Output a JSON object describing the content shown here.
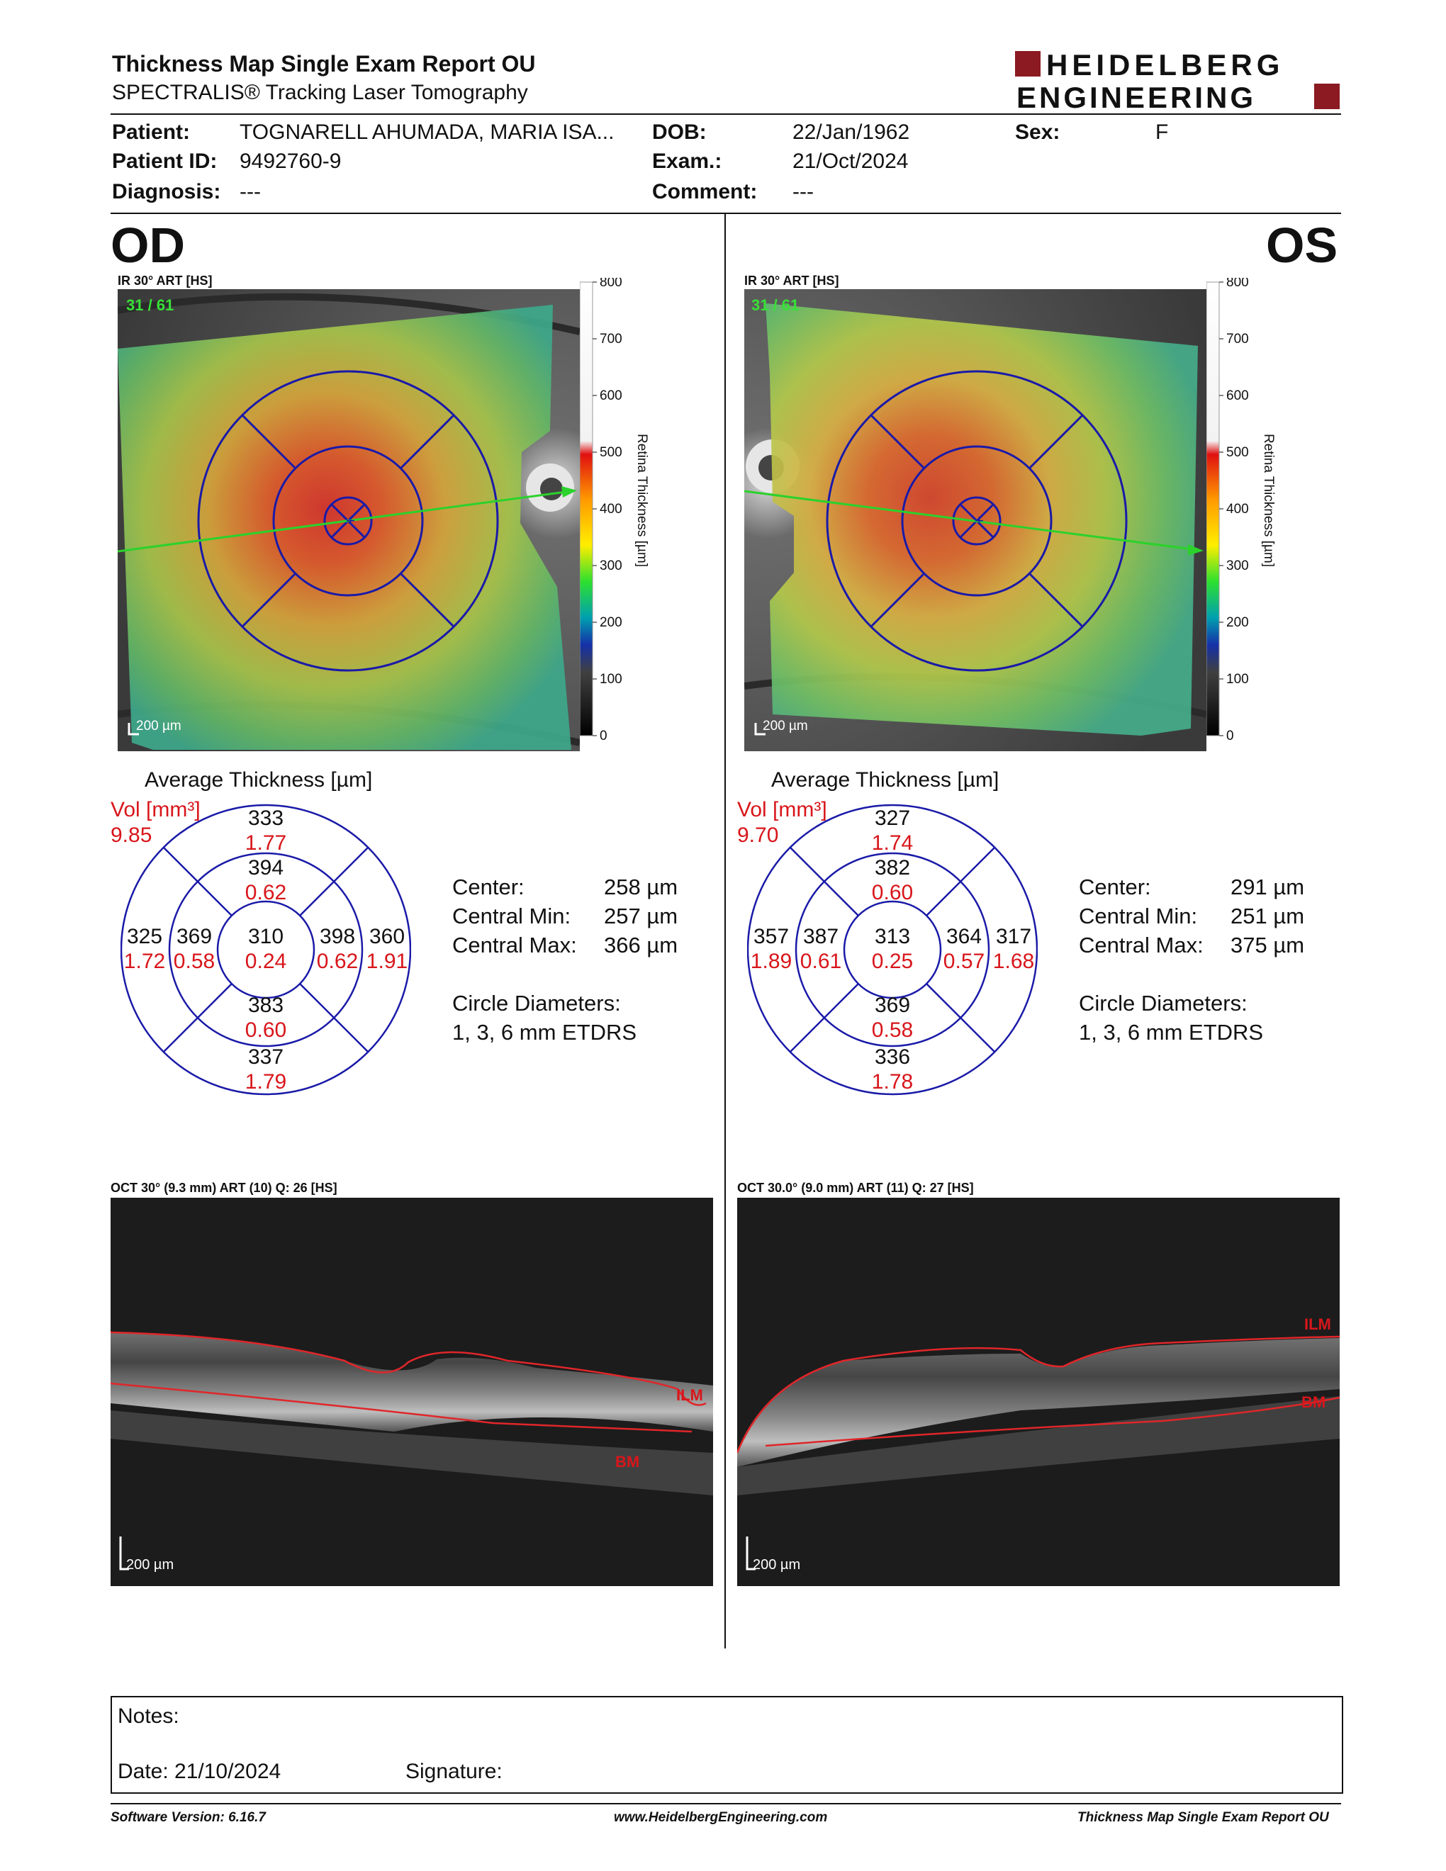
{
  "header": {
    "title": "Thickness Map Single Exam Report OU",
    "subtitle": "SPECTRALIS® Tracking Laser Tomography",
    "logo_line1": "HEIDELBERG",
    "logo_line2": "ENGINEERING",
    "brand_color": "#8b1a22"
  },
  "patient": {
    "patient_label": "Patient:",
    "patient_value": "TOGNARELL AHUMADA, MARIA ISA...",
    "id_label": "Patient ID:",
    "id_value": "9492760-9",
    "diagnosis_label": "Diagnosis:",
    "diagnosis_value": "---",
    "dob_label": "DOB:",
    "dob_value": "22/Jan/1962",
    "exam_label": "Exam.:",
    "exam_value": "21/Oct/2024",
    "comment_label": "Comment:",
    "comment_value": "---",
    "sex_label": "Sex:",
    "sex_value": "F"
  },
  "colorbar": {
    "label": "Retina Thickness [µm]",
    "ticks": [
      "800",
      "700",
      "600",
      "500",
      "400",
      "300",
      "200",
      "100",
      "0"
    ]
  },
  "od": {
    "eye": "OD",
    "ir_label": "IR 30° ART [HS]",
    "frame_counter": "31 / 61",
    "scale_bar": "200 µm",
    "avg_title": "Average Thickness [µm]",
    "vol_label": "Vol [mm³]",
    "vol_value": "9.85",
    "sectors": {
      "outer_sup": {
        "t": "333",
        "v": "1.77"
      },
      "inner_sup": {
        "t": "394",
        "v": "0.62"
      },
      "outer_left": {
        "t": "325",
        "v": "1.72"
      },
      "inner_left": {
        "t": "369",
        "v": "0.58"
      },
      "center": {
        "t": "310",
        "v": "0.24"
      },
      "inner_right": {
        "t": "398",
        "v": "0.62"
      },
      "outer_right": {
        "t": "360",
        "v": "1.91"
      },
      "inner_inf": {
        "t": "383",
        "v": "0.60"
      },
      "outer_inf": {
        "t": "337",
        "v": "1.79"
      }
    },
    "center_label": "Center:",
    "center_value": "258 µm",
    "cmin_label": "Central Min:",
    "cmin_value": "257 µm",
    "cmax_label": "Central Max:",
    "cmax_value": "366 µm",
    "circle_label": "Circle Diameters:",
    "circle_value": "1, 3, 6 mm ETDRS",
    "oct_label": "OCT 30° (9.3 mm) ART (10) Q: 26 [HS]",
    "ilm": "ILM",
    "bm": "BM",
    "oct_scale": "200 µm"
  },
  "os": {
    "eye": "OS",
    "ir_label": "IR 30° ART [HS]",
    "frame_counter": "31 / 61",
    "scale_bar": "200 µm",
    "avg_title": "Average Thickness [µm]",
    "vol_label": "Vol [mm³]",
    "vol_value": "9.70",
    "sectors": {
      "outer_sup": {
        "t": "327",
        "v": "1.74"
      },
      "inner_sup": {
        "t": "382",
        "v": "0.60"
      },
      "outer_left": {
        "t": "357",
        "v": "1.89"
      },
      "inner_left": {
        "t": "387",
        "v": "0.61"
      },
      "center": {
        "t": "313",
        "v": "0.25"
      },
      "inner_right": {
        "t": "364",
        "v": "0.57"
      },
      "outer_right": {
        "t": "317",
        "v": "1.68"
      },
      "inner_inf": {
        "t": "369",
        "v": "0.58"
      },
      "outer_inf": {
        "t": "336",
        "v": "1.78"
      }
    },
    "center_label": "Center:",
    "center_value": "291 µm",
    "cmin_label": "Central Min:",
    "cmin_value": "251 µm",
    "cmax_label": "Central Max:",
    "cmax_value": "375 µm",
    "circle_label": "Circle Diameters:",
    "circle_value": "1, 3, 6 mm ETDRS",
    "oct_label": "OCT 30.0° (9.0 mm) ART (11) Q: 27 [HS]",
    "ilm": "ILM",
    "bm": "BM",
    "oct_scale": "200 µm"
  },
  "notes": {
    "notes_label": "Notes:",
    "date_label": "Date: 21/10/2024",
    "signature_label": "Signature:"
  },
  "footer": {
    "version": "Software Version: 6.16.7",
    "website": "www.HeidelbergEngineering.com",
    "report_name": "Thickness Map Single Exam Report OU"
  }
}
